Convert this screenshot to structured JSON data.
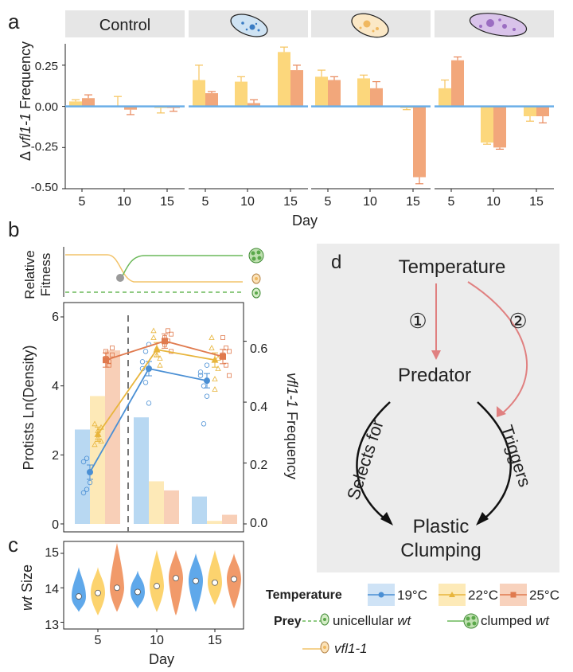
{
  "colors": {
    "c19": "#7db8e8",
    "c22": "#fcd77c",
    "c25": "#f2a77b",
    "c19_line": "#4a8fd4",
    "c22_line": "#e8b53c",
    "c25_line": "#e07a4e",
    "zero_line": "#6aaee8",
    "strip_bg": "#e6e6e6",
    "arrow": "#e08080",
    "panel_d_bg": "#ececec",
    "clumped": "#5aa84a"
  },
  "panel_labels": {
    "a": "a",
    "b": "b",
    "c": "c",
    "d": "d"
  },
  "panel_a": {
    "ylabel_prefix": "Δ ",
    "ylabel_italic": "vfl1-1",
    "ylabel_suffix": " Frequency",
    "xlabel": "Day",
    "strip_title": "Control",
    "y_ticks": [
      "0.25",
      "0.00",
      "-0.25",
      "-0.50"
    ],
    "x_ticks": [
      "5",
      "10",
      "15"
    ]
  },
  "panel_b": {
    "fitness_label_1": "Relative",
    "fitness_label_2": "Fitness",
    "ylabel_left": "Protists Ln(Density)",
    "ylabel_right_italic": "vfl1-1",
    "ylabel_right_suffix": " Frequency",
    "y_left_ticks": [
      "6",
      "4",
      "2",
      "0"
    ],
    "y_right_ticks": [
      "0.6",
      "0.4",
      "0.2",
      "0.0"
    ]
  },
  "panel_c": {
    "ylabel_italic": "wt",
    "ylabel_suffix": " Size",
    "y_ticks": [
      "15",
      "14",
      "13"
    ],
    "x_ticks": [
      "5",
      "10",
      "15"
    ],
    "xlabel": "Day"
  },
  "panel_d": {
    "temperature": "Temperature",
    "predator": "Predator",
    "plastic_1": "Plastic",
    "plastic_2": "Clumping",
    "selects_for": "Selects for",
    "triggers": "Triggers",
    "circle_1": "①",
    "circle_2": "②"
  },
  "legend": {
    "temperature_title": "Temperature",
    "t19": "19°C",
    "t22": "22°C",
    "t25": "25°C",
    "prey_title": "Prey",
    "unicellular": "unicellular ",
    "unicellular_italic": "wt",
    "clumped": "clumped ",
    "clumped_italic": "wt",
    "vfl": "vfl1-1"
  },
  "chart_data": [
    {
      "id": "panel-a",
      "type": "bar",
      "ylabel": "Δ vfl1-1 Frequency",
      "xlabel": "Day",
      "ylim": [
        -0.5,
        0.38
      ],
      "panels": [
        "Control",
        "",
        "",
        ""
      ],
      "categories": [
        "5",
        "10",
        "15"
      ],
      "series": [
        {
          "name": "22°C",
          "values": [
            [
              0.03,
              0.0,
              -0.01
            ],
            [
              0.16,
              0.15,
              0.33
            ],
            [
              0.18,
              0.17,
              -0.01
            ],
            [
              0.11,
              -0.22,
              -0.06
            ]
          ]
        },
        {
          "name": "25°C",
          "values": [
            [
              0.05,
              -0.02,
              -0.01
            ],
            [
              0.08,
              0.02,
              0.22
            ],
            [
              0.16,
              0.11,
              -0.43
            ],
            [
              0.28,
              -0.25,
              -0.06
            ]
          ]
        }
      ],
      "errors": [
        [
          [
            0.01,
            0.02,
            0.01
          ],
          [
            0.06,
            0.03,
            0.04
          ],
          [
            0.03,
            0.02,
            0.03
          ]
        ],
        [
          [
            0.09,
            0.01,
            0.08
          ],
          [
            0.03,
            0.02,
            0.04
          ],
          [
            0.03,
            0.03,
            0.03
          ]
        ],
        [
          [
            0.04,
            0.02,
            0.02
          ],
          [
            0.02,
            0.04,
            0.02
          ],
          [
            0.01,
            0.04,
            0.01
          ]
        ],
        [
          [
            0.05,
            0.02,
            0.02
          ],
          [
            0.01,
            0.01,
            0.01
          ],
          [
            0.03,
            0.04,
            0.01
          ]
        ]
      ],
      "grid": false
    },
    {
      "id": "panel-b",
      "type": "line",
      "ylabel": "Protists Ln(Density)",
      "y2label": "vfl1-1 Frequency",
      "ylim": [
        0,
        6
      ],
      "y2lim": [
        0,
        0.68
      ],
      "x": [
        5,
        10,
        15
      ],
      "series": [
        {
          "name": "19°C",
          "values": [
            1.5,
            4.5,
            4.15
          ]
        },
        {
          "name": "22°C",
          "values": [
            2.6,
            5.05,
            4.75
          ]
        },
        {
          "name": "25°C",
          "values": [
            4.75,
            5.3,
            4.85
          ]
        }
      ],
      "bars_vfl1_1_frequency": [
        {
          "name": "19°C",
          "values": [
            0.31,
            0.35,
            0.09
          ]
        },
        {
          "name": "22°C",
          "values": [
            0.42,
            0.14,
            0.01
          ]
        },
        {
          "name": "25°C",
          "values": [
            0.57,
            0.11,
            0.03
          ]
        }
      ],
      "fitness_curves": [
        {
          "name": "vfl1-1",
          "values": "high before the transition, low after"
        },
        {
          "name": "clumped wt",
          "values": "low before the transition, high after"
        },
        {
          "name": "unicellular wt",
          "values": "constant, dashed"
        }
      ]
    },
    {
      "id": "panel-c",
      "type": "violin",
      "ylabel": "wt Size",
      "xlabel": "Day",
      "ylim": [
        12.85,
        15.3
      ],
      "categories": [
        "5",
        "10",
        "15"
      ],
      "series": [
        {
          "name": "19°C",
          "medians": [
            13.75,
            13.88,
            14.2
          ]
        },
        {
          "name": "22°C",
          "medians": [
            13.85,
            14.05,
            14.15
          ]
        },
        {
          "name": "25°C",
          "medians": [
            14.0,
            14.28,
            14.25
          ]
        }
      ]
    }
  ]
}
